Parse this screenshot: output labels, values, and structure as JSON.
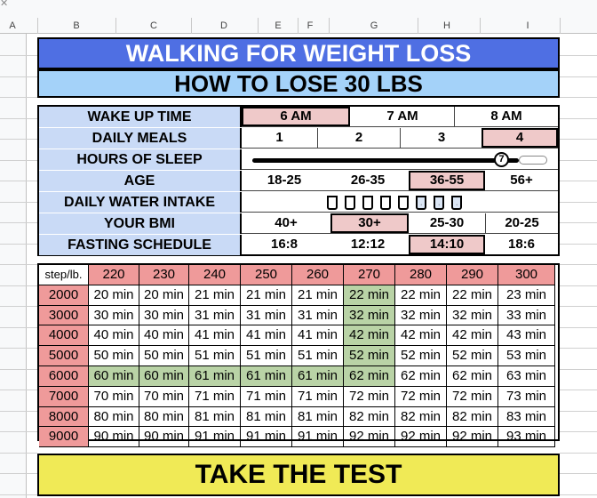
{
  "sheet": {
    "corner_icon": "close-icon",
    "columns": [
      "A",
      "B",
      "C",
      "D",
      "E",
      "F",
      "G",
      "H",
      "I"
    ]
  },
  "title": "WALKING FOR WEIGHT LOSS",
  "subtitle": "HOW TO LOSE 30 LBS",
  "settings": {
    "wake_up": {
      "label": "WAKE UP TIME",
      "options": [
        "6 AM",
        "7 AM",
        "8 AM"
      ],
      "selected": "6 AM"
    },
    "meals": {
      "label": "DAILY MEALS",
      "options": [
        "1",
        "2",
        "3",
        "4"
      ],
      "selected": "4"
    },
    "sleep": {
      "label": "HOURS OF SLEEP",
      "value": "7",
      "value_fraction": 0.9
    },
    "age": {
      "label": "AGE",
      "options": [
        "18-25",
        "26-35",
        "36-55",
        "56+"
      ],
      "selected": "36-55"
    },
    "water": {
      "label": "DAILY WATER INTAKE",
      "cups_total": 8,
      "cups_filled": 5
    },
    "bmi": {
      "label": "YOUR BMI",
      "options": [
        "40+",
        "30+",
        "25-30",
        "20-25"
      ],
      "selected": "30+"
    },
    "fasting": {
      "label": "FASTING SCHEDULE",
      "options": [
        "16:8",
        "12:12",
        "14:10",
        "18:6"
      ],
      "selected": "14:10"
    }
  },
  "table": {
    "corner": "step/lb.",
    "weights": [
      "220",
      "230",
      "240",
      "250",
      "260",
      "270",
      "280",
      "290",
      "300"
    ],
    "rows": [
      {
        "steps": "2000",
        "values": [
          "20 min",
          "20 min",
          "21 min",
          "21 min",
          "21 min",
          "22 min",
          "22 min",
          "22 min",
          "23 min"
        ]
      },
      {
        "steps": "3000",
        "values": [
          "30 min",
          "30 min",
          "31 min",
          "31 min",
          "31 min",
          "32 min",
          "32 min",
          "32 min",
          "33 min"
        ]
      },
      {
        "steps": "4000",
        "values": [
          "40 min",
          "40 min",
          "41 min",
          "41 min",
          "41 min",
          "42 min",
          "42 min",
          "42 min",
          "43 min"
        ]
      },
      {
        "steps": "5000",
        "values": [
          "50 min",
          "50 min",
          "51 min",
          "51 min",
          "51 min",
          "52 min",
          "52 min",
          "52 min",
          "53 min"
        ]
      },
      {
        "steps": "6000",
        "values": [
          "60 min",
          "60 min",
          "61 min",
          "61 min",
          "61 min",
          "62 min",
          "62 min",
          "62 min",
          "63 min"
        ]
      },
      {
        "steps": "7000",
        "values": [
          "70 min",
          "70 min",
          "71 min",
          "71 min",
          "71 min",
          "72 min",
          "72 min",
          "72 min",
          "73 min"
        ]
      },
      {
        "steps": "8000",
        "values": [
          "80 min",
          "80 min",
          "81 min",
          "81 min",
          "81 min",
          "82 min",
          "82 min",
          "82 min",
          "83 min"
        ]
      },
      {
        "steps": "9000",
        "values": [
          "90 min",
          "90 min",
          "91 min",
          "91 min",
          "91 min",
          "92 min",
          "92 min",
          "92 min",
          "93 min"
        ]
      }
    ],
    "highlight_row": "6000",
    "highlight_weight": "270",
    "highlight_color": "#b9d3a6",
    "header_color": "#ef9a9a"
  },
  "cta": "TAKE THE TEST",
  "colors": {
    "title_bg": "#4f6fe3",
    "subtitle_bg": "#a4d2f9",
    "label_bg": "#c9daf6",
    "selected_bg": "#efc9c9",
    "cta_bg": "#f0ea56"
  }
}
